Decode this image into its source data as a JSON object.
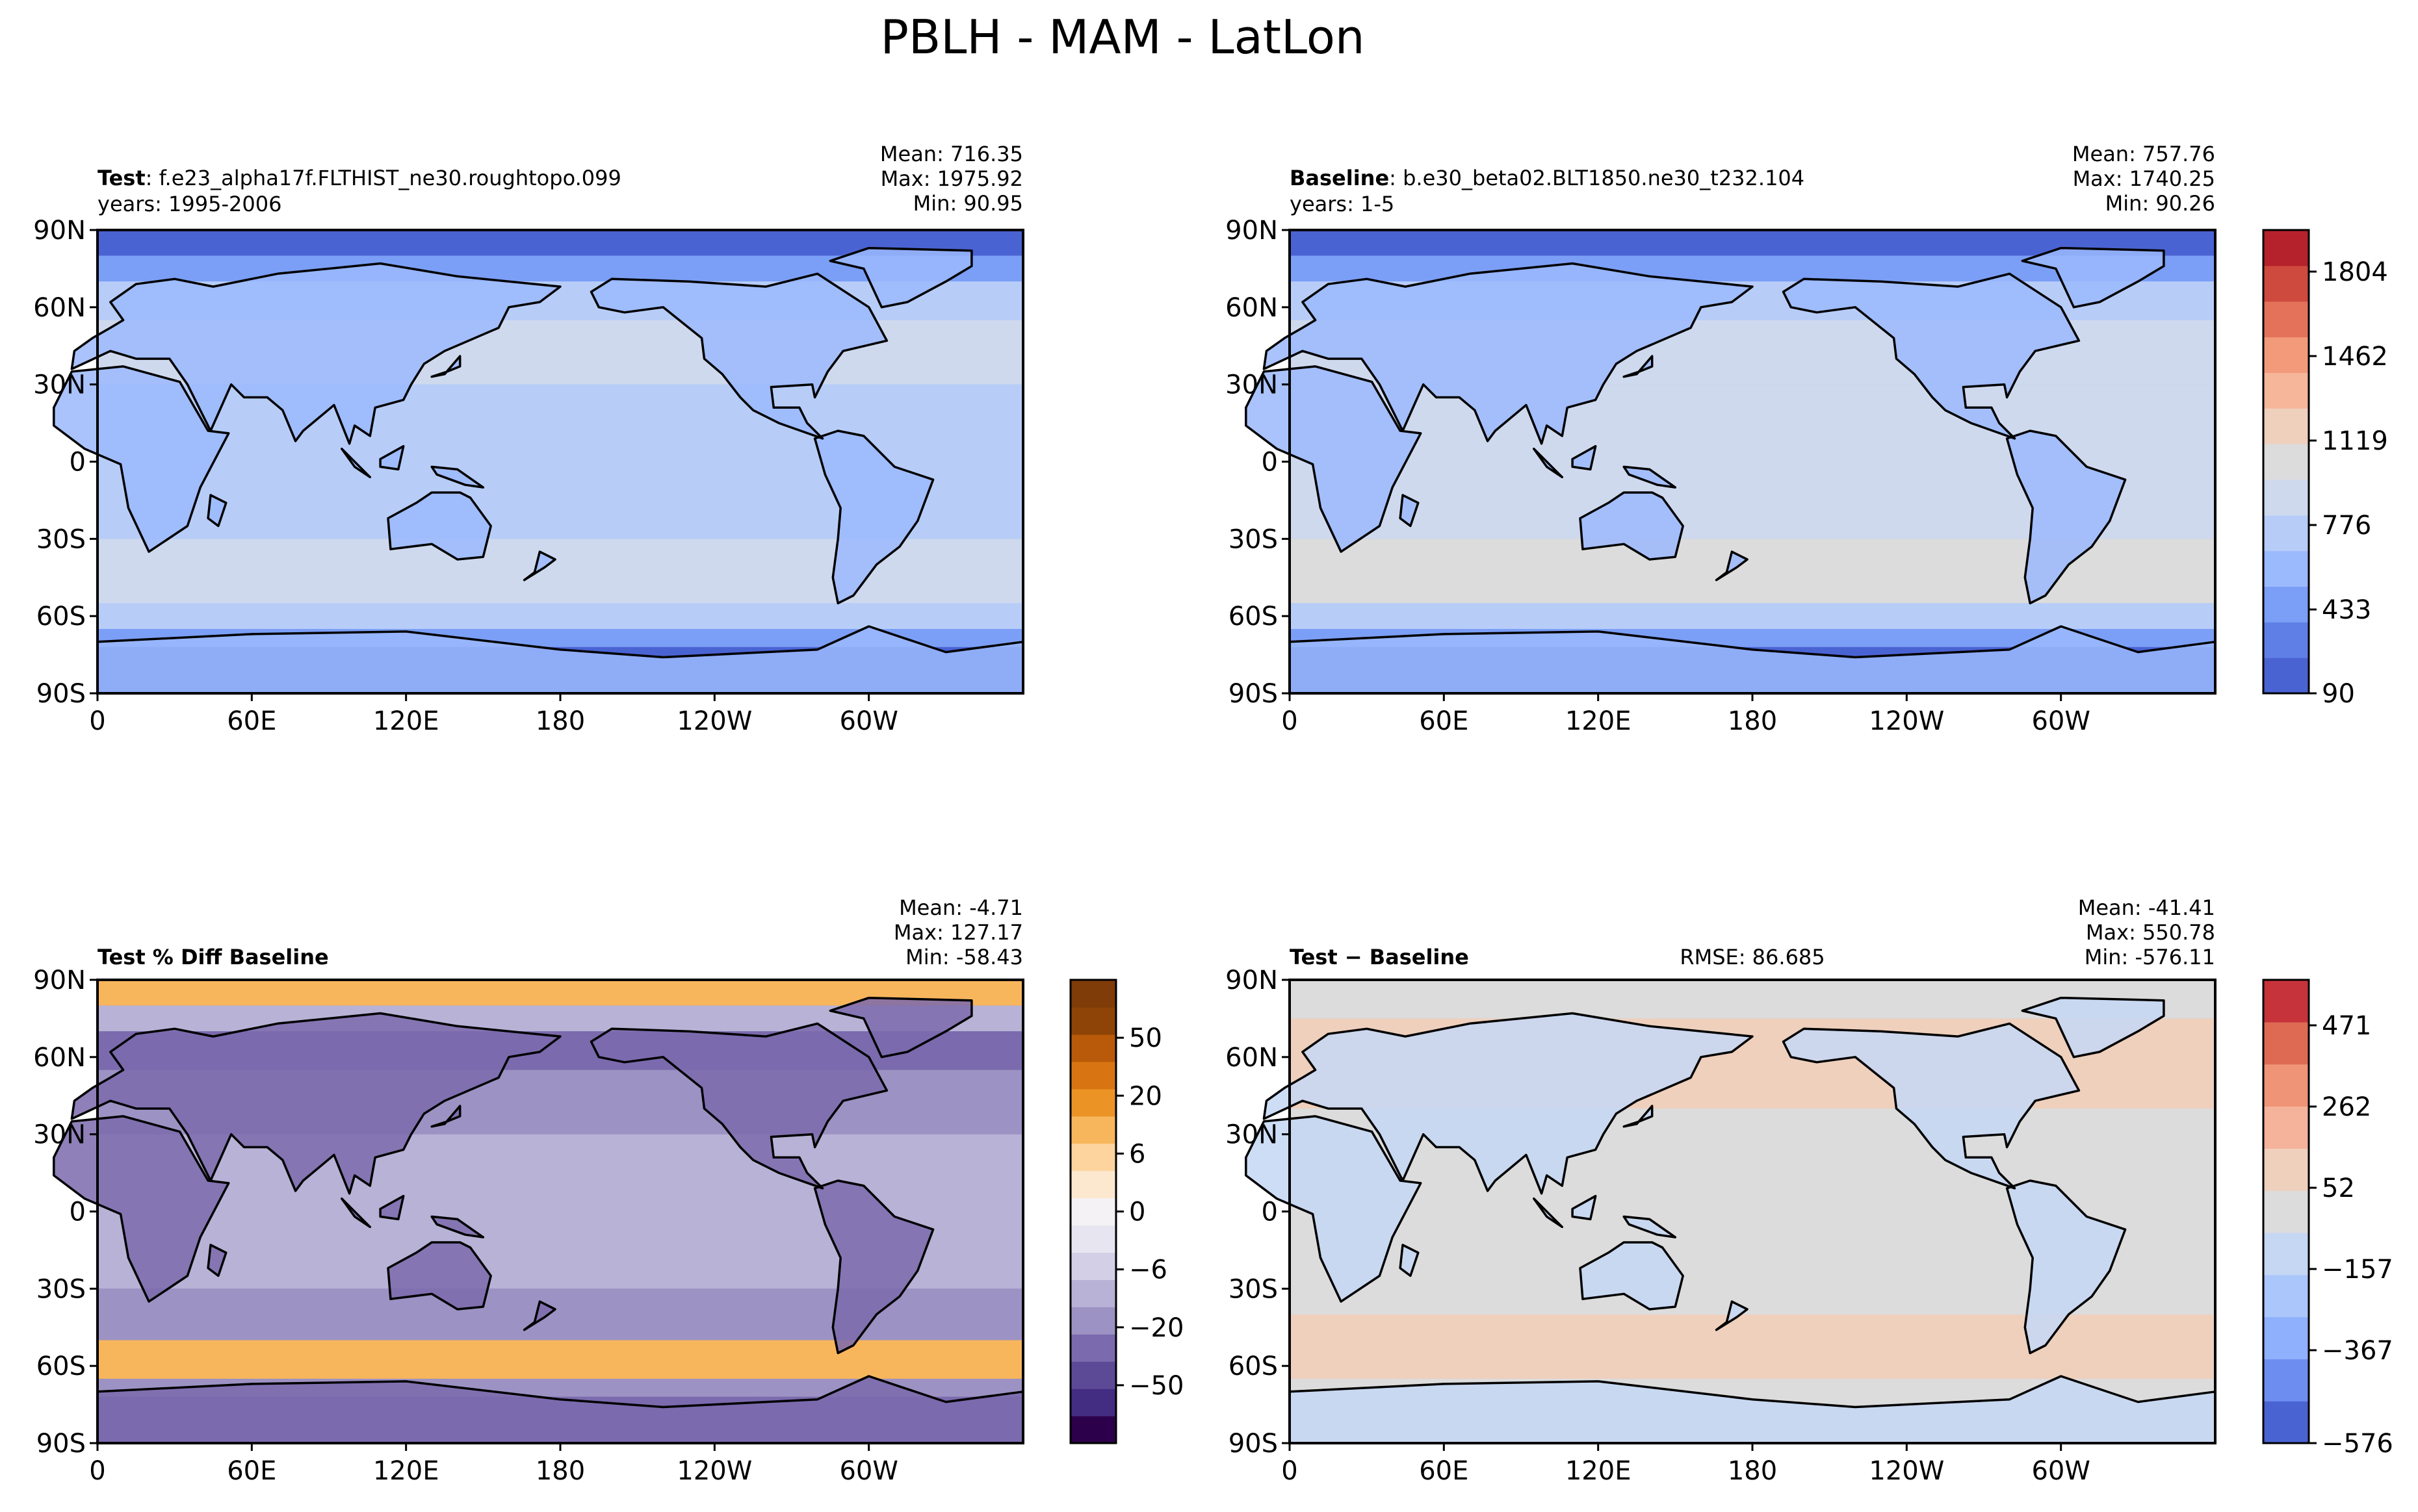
{
  "figure_title": "PBLH - MAM - LatLon",
  "lat_ticks": [
    "90N",
    "60N",
    "30N",
    "0",
    "30S",
    "60S",
    "90S"
  ],
  "lon_ticks": [
    "0",
    "60E",
    "120E",
    "180",
    "120W",
    "60W"
  ],
  "panels": {
    "test": {
      "label_bold": "Test",
      "label_rest": ": f.e23_alpha17f.FLTHIST_ne30.roughtopo.099",
      "years": "years: 1995-2006",
      "mean": "Mean: 716.35",
      "max": "Max: 1975.92",
      "min": "Min: 90.95"
    },
    "baseline": {
      "label_bold": "Baseline",
      "label_rest": ": b.e30_beta02.BLT1850.ne30_t232.104",
      "years": "years: 1-5",
      "mean": "Mean: 757.76",
      "max": "Max: 1740.25",
      "min": "Min: 90.26"
    },
    "pctdiff": {
      "label_bold": "Test % Diff Baseline",
      "mean": "Mean: -4.71",
      "max": "Max: 127.17",
      "min": "Min: -58.43"
    },
    "diff": {
      "label_bold": "Test − Baseline",
      "rmse": "RMSE: 86.685",
      "mean": "Mean: -41.41",
      "max": "Max: 550.78",
      "min": "Min: -576.11"
    }
  },
  "colorbars": {
    "main": {
      "ticks": [
        "1804",
        "1462",
        "1119",
        "776",
        "433",
        "90"
      ],
      "colors": [
        "#4a63d3",
        "#5f7fe6",
        "#7b9ff6",
        "#9bb9fd",
        "#b7cdf8",
        "#cfd9ee",
        "#dcdcdc",
        "#efd0bd",
        "#f6b69a",
        "#f39a7b",
        "#e4725a",
        "#cf4a3e",
        "#b5222b"
      ]
    },
    "pctdiff": {
      "ticks": [
        "50",
        "20",
        "6",
        "0",
        "−6",
        "−20",
        "−50"
      ],
      "colors": [
        "#2d004b",
        "#432d83",
        "#5d4a96",
        "#7b6aad",
        "#9c92c3",
        "#b8b2d6",
        "#d2cfe6",
        "#e6e5f0",
        "#f4f2f4",
        "#fbe8cf",
        "#fdd49e",
        "#f8b65c",
        "#ec9326",
        "#d87512",
        "#b85a09",
        "#8d4406",
        "#7f3b08"
      ]
    },
    "diff": {
      "ticks": [
        "471",
        "262",
        "52",
        "−157",
        "−367",
        "−576"
      ],
      "colors": [
        "#4a63d3",
        "#6d8ef0",
        "#8fb0fc",
        "#abc6fb",
        "#c6d7f4",
        "#dcdcdc",
        "#efd0bd",
        "#f5b39b",
        "#ef9477",
        "#df6a54",
        "#c6333a"
      ]
    }
  }
}
